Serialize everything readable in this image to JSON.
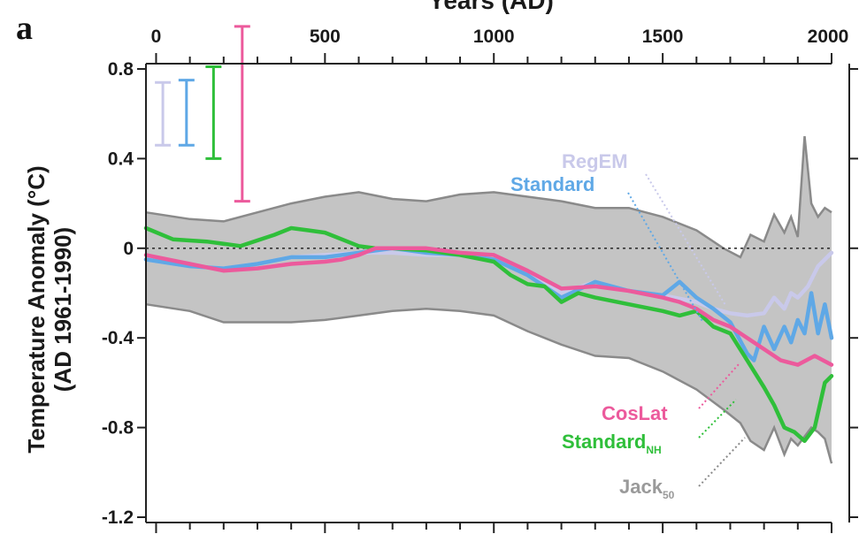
{
  "chart_data": {
    "type": "line",
    "panel_label": "a",
    "xlabel": "Years (AD)",
    "ylabel_line1": "Temperature Anomaly (°C)",
    "ylabel_line2": "(AD 1961-1990)",
    "xlim": [
      -30,
      2000
    ],
    "ylim": [
      -1.2,
      0.8
    ],
    "x_ticks": [
      0,
      500,
      1000,
      1500,
      2000
    ],
    "y_ticks": [
      0.8,
      0.4,
      0,
      -0.4,
      -0.8,
      -1.2
    ],
    "y_tick_labels": [
      "0.8",
      "0.4",
      "0",
      "-0.4",
      "-0.8",
      "-1.2"
    ],
    "zero_line": true,
    "colors": {
      "regem": "#c9c9ea",
      "standard": "#5fa8e6",
      "standard_nh": "#2fbf3a",
      "coslat": "#ec5a9c",
      "jack_band": "#c4c4c4",
      "jack_edge": "#8a8a8a"
    },
    "error_bars": [
      {
        "series": "RegEM",
        "x": 20,
        "low": 0.46,
        "high": 0.74,
        "color": "#c9c9ea"
      },
      {
        "series": "Standard",
        "x": 90,
        "low": 0.46,
        "high": 0.75,
        "color": "#5fa8e6"
      },
      {
        "series": "Standard_NH",
        "x": 170,
        "low": 0.4,
        "high": 0.81,
        "color": "#2fbf3a"
      },
      {
        "series": "CosLat",
        "x": 255,
        "low": 0.21,
        "high": 0.99,
        "color": "#ec5a9c"
      }
    ],
    "jack_band": {
      "x": [
        -30,
        100,
        200,
        300,
        400,
        500,
        600,
        700,
        800,
        900,
        1000,
        1100,
        1200,
        1300,
        1400,
        1500,
        1600,
        1680,
        1730,
        1760,
        1800,
        1830,
        1860,
        1880,
        1900,
        1920,
        1940,
        1960,
        1980,
        2000
      ],
      "upper": [
        0.16,
        0.13,
        0.12,
        0.16,
        0.2,
        0.23,
        0.25,
        0.22,
        0.21,
        0.24,
        0.25,
        0.23,
        0.21,
        0.18,
        0.18,
        0.14,
        0.08,
        0.0,
        -0.04,
        0.06,
        0.03,
        0.15,
        0.07,
        0.14,
        0.05,
        0.5,
        0.2,
        0.14,
        0.18,
        0.16
      ],
      "lower": [
        -0.25,
        -0.28,
        -0.33,
        -0.33,
        -0.33,
        -0.32,
        -0.3,
        -0.28,
        -0.27,
        -0.28,
        -0.3,
        -0.37,
        -0.43,
        -0.48,
        -0.49,
        -0.55,
        -0.63,
        -0.72,
        -0.78,
        -0.86,
        -0.9,
        -0.8,
        -0.92,
        -0.85,
        -0.88,
        -0.84,
        -0.8,
        -0.82,
        -0.85,
        -0.96
      ]
    },
    "series": [
      {
        "name": "RegEM",
        "key": "regem",
        "x": [
          -30,
          100,
          200,
          300,
          400,
          500,
          600,
          700,
          800,
          900,
          1000,
          1100,
          1200,
          1300,
          1400,
          1500,
          1600,
          1650,
          1700,
          1750,
          1800,
          1830,
          1860,
          1880,
          1900,
          1930,
          1960,
          2000
        ],
        "y": [
          -0.05,
          -0.08,
          -0.09,
          -0.07,
          -0.04,
          -0.03,
          -0.02,
          -0.02,
          -0.03,
          -0.03,
          -0.05,
          -0.12,
          -0.2,
          -0.15,
          -0.19,
          -0.21,
          -0.24,
          -0.27,
          -0.29,
          -0.3,
          -0.29,
          -0.22,
          -0.27,
          -0.2,
          -0.22,
          -0.17,
          -0.08,
          -0.02
        ]
      },
      {
        "name": "Standard",
        "key": "standard",
        "x": [
          -30,
          100,
          200,
          300,
          400,
          500,
          600,
          700,
          800,
          900,
          1000,
          1100,
          1200,
          1300,
          1400,
          1500,
          1550,
          1600,
          1650,
          1700,
          1750,
          1770,
          1800,
          1830,
          1860,
          1880,
          1900,
          1920,
          1940,
          1960,
          1980,
          2000
        ],
        "y": [
          -0.05,
          -0.08,
          -0.09,
          -0.07,
          -0.04,
          -0.04,
          -0.02,
          0.0,
          -0.02,
          -0.03,
          -0.05,
          -0.12,
          -0.22,
          -0.15,
          -0.19,
          -0.21,
          -0.15,
          -0.22,
          -0.27,
          -0.33,
          -0.47,
          -0.5,
          -0.35,
          -0.45,
          -0.35,
          -0.42,
          -0.32,
          -0.38,
          -0.2,
          -0.38,
          -0.25,
          -0.4
        ]
      },
      {
        "name": "Standard_NH",
        "key": "standard_nh",
        "x": [
          -30,
          50,
          150,
          250,
          350,
          400,
          450,
          500,
          550,
          600,
          650,
          700,
          800,
          900,
          1000,
          1050,
          1100,
          1150,
          1200,
          1250,
          1300,
          1400,
          1500,
          1550,
          1600,
          1650,
          1700,
          1750,
          1800,
          1830,
          1860,
          1890,
          1920,
          1950,
          1980,
          2000
        ],
        "y": [
          0.09,
          0.04,
          0.03,
          0.01,
          0.06,
          0.09,
          0.08,
          0.07,
          0.04,
          0.01,
          0.0,
          0.0,
          -0.01,
          -0.03,
          -0.06,
          -0.12,
          -0.16,
          -0.17,
          -0.24,
          -0.2,
          -0.22,
          -0.25,
          -0.28,
          -0.3,
          -0.28,
          -0.35,
          -0.38,
          -0.5,
          -0.62,
          -0.7,
          -0.8,
          -0.82,
          -0.86,
          -0.8,
          -0.6,
          -0.57
        ]
      },
      {
        "name": "CosLat",
        "key": "coslat",
        "x": [
          -30,
          100,
          200,
          300,
          400,
          500,
          550,
          600,
          650,
          700,
          800,
          900,
          1000,
          1100,
          1200,
          1300,
          1400,
          1500,
          1550,
          1600,
          1650,
          1700,
          1750,
          1800,
          1850,
          1900,
          1950,
          2000
        ],
        "y": [
          -0.03,
          -0.07,
          -0.1,
          -0.09,
          -0.07,
          -0.06,
          -0.05,
          -0.03,
          0.0,
          0.0,
          0.0,
          -0.02,
          -0.03,
          -0.1,
          -0.18,
          -0.17,
          -0.19,
          -0.22,
          -0.24,
          -0.27,
          -0.32,
          -0.35,
          -0.4,
          -0.45,
          -0.5,
          -0.52,
          -0.48,
          -0.52
        ]
      }
    ],
    "labels": {
      "regem": "RegEM",
      "standard": "Standard",
      "coslat": "CosLat",
      "standard_nh_main": "Standard",
      "standard_nh_sub": "NH",
      "jack_main": "Jack",
      "jack_sub": "50"
    }
  }
}
